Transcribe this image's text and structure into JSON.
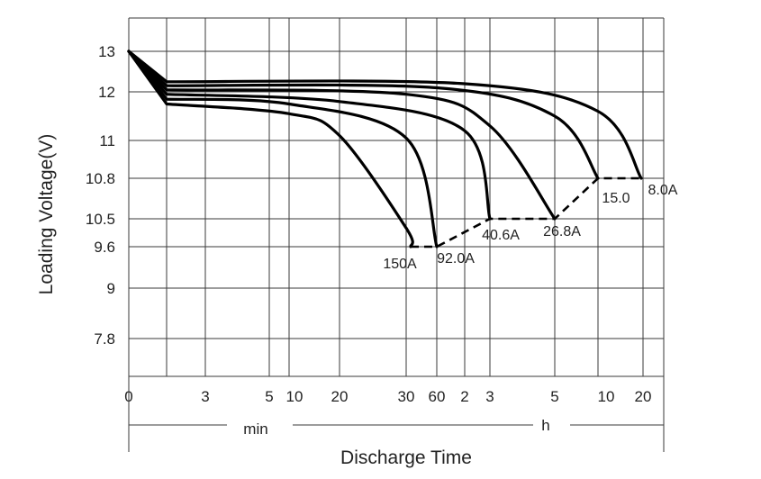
{
  "chart_data": {
    "type": "line",
    "title": "",
    "xlabel": "Discharge Time",
    "ylabel": "Loading  Voltage(V)",
    "x_ticks": [
      "0",
      "3",
      "5",
      "10",
      "20",
      "30",
      "60",
      "2",
      "3",
      "5",
      "10",
      "20"
    ],
    "x_unit_labels": [
      "min",
      "h"
    ],
    "y_ticks": [
      "13",
      "12",
      "11",
      "10.8",
      "10.5",
      "9.6",
      "9",
      "7.8"
    ],
    "x_scale": "logarithmic",
    "grid": true,
    "legend": "none",
    "series": [
      {
        "name": "150A",
        "points": [
          {
            "t": "0 min",
            "v": 13.0
          },
          {
            "t": "1.5 min",
            "v": 11.75
          },
          {
            "t": "10 min",
            "v": 11.55
          },
          {
            "t": "20 min",
            "v": 11.1
          },
          {
            "t": "30 min",
            "v": 10.2
          },
          {
            "t": "33 min",
            "v": 9.6
          }
        ]
      },
      {
        "name": "92.0A",
        "points": [
          {
            "t": "0 min",
            "v": 13.0
          },
          {
            "t": "1.5 min",
            "v": 11.85
          },
          {
            "t": "10 min",
            "v": 11.75
          },
          {
            "t": "30 min",
            "v": 11.05
          },
          {
            "t": "60 min",
            "v": 9.6
          }
        ]
      },
      {
        "name": "40.6A",
        "points": [
          {
            "t": "0 min",
            "v": 13.0
          },
          {
            "t": "1.5 min",
            "v": 11.95
          },
          {
            "t": "20 min",
            "v": 11.8
          },
          {
            "t": "2 h",
            "v": 11.2
          },
          {
            "t": "3 h",
            "v": 10.5
          }
        ]
      },
      {
        "name": "26.8A",
        "points": [
          {
            "t": "0 min",
            "v": 13.0
          },
          {
            "t": "1.5 min",
            "v": 12.05
          },
          {
            "t": "30 min",
            "v": 11.95
          },
          {
            "t": "3 h",
            "v": 11.3
          },
          {
            "t": "5 h",
            "v": 10.5
          }
        ]
      },
      {
        "name": "15.0",
        "points": [
          {
            "t": "0 min",
            "v": 13.0
          },
          {
            "t": "1.5 min",
            "v": 12.15
          },
          {
            "t": "60 min",
            "v": 12.1
          },
          {
            "t": "5 h",
            "v": 11.5
          },
          {
            "t": "10 h",
            "v": 10.8
          }
        ]
      },
      {
        "name": "8.0A",
        "points": [
          {
            "t": "0 min",
            "v": 13.0
          },
          {
            "t": "1.5 min",
            "v": 12.25
          },
          {
            "t": "2 h",
            "v": 12.2
          },
          {
            "t": "10 h",
            "v": 11.6
          },
          {
            "t": "20 h",
            "v": 10.8
          }
        ]
      }
    ],
    "end_voltage_line": [
      {
        "t": "33 min",
        "v": 9.6
      },
      {
        "t": "60 min",
        "v": 9.6
      },
      {
        "t": "3 h",
        "v": 10.5
      },
      {
        "t": "5 h",
        "v": 10.5
      },
      {
        "t": "10 h",
        "v": 10.8
      },
      {
        "t": "20 h",
        "v": 10.8
      }
    ]
  }
}
